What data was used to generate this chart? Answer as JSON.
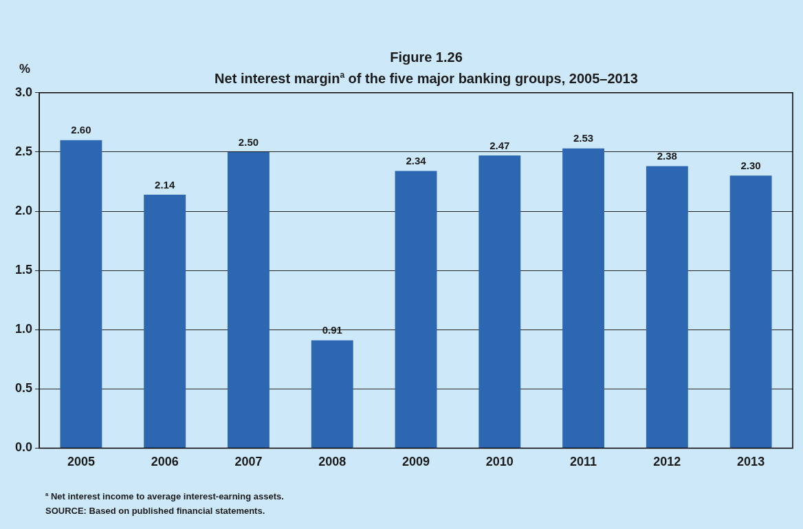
{
  "chart_data": {
    "type": "bar",
    "title": "Figure 1.26",
    "subtitle": "Net interest margin$^{a}$ of the five major banking groups, 2005–2013",
    "ylabel": "%",
    "categories": [
      "2005",
      "2006",
      "2007",
      "2008",
      "2009",
      "2010",
      "2011",
      "2012",
      "2013"
    ],
    "values": [
      2.6,
      2.14,
      2.5,
      0.91,
      2.34,
      2.47,
      2.53,
      2.38,
      2.3
    ],
    "value_labels": [
      "2.60",
      "2.14",
      "2.50",
      "0.91",
      "2.34",
      "2.47",
      "2.53",
      "2.38",
      "2.30"
    ],
    "color": "#2e67b1",
    "ylim": [
      0,
      3
    ],
    "yticks": [
      {
        "value": 0,
        "label": "0.0"
      },
      {
        "value": 0.5,
        "label": "0.5"
      },
      {
        "value": 1,
        "label": "1.0"
      },
      {
        "value": 1.5,
        "label": "1.5"
      },
      {
        "value": 2,
        "label": "2.0"
      },
      {
        "value": 2.5,
        "label": "2.5"
      },
      {
        "value": 3,
        "label": "3.0"
      }
    ],
    "grid": "y",
    "legend": false,
    "annotations": [
      "$^{a}$ Net interest income to average interest-earning assets.",
      "SOURCE: Based on published financial statements."
    ]
  }
}
